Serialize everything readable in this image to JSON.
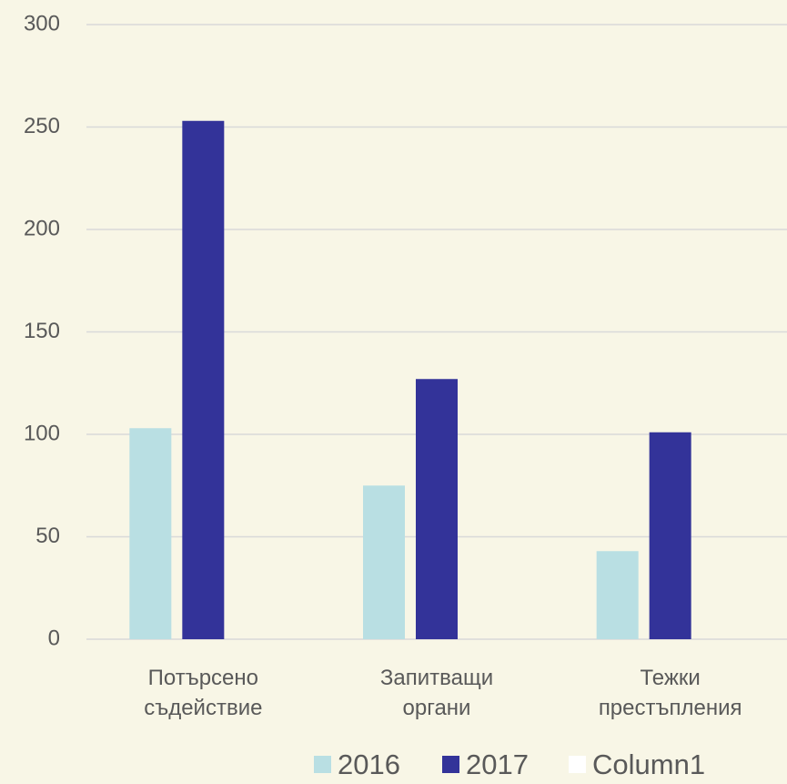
{
  "chart_data": {
    "type": "bar",
    "categories": [
      "Потърсено съдействие",
      "Запитващи органи",
      "Тежки престъпления"
    ],
    "series": [
      {
        "name": "2016",
        "color": "#b9dfe3",
        "values": [
          103,
          75,
          43
        ]
      },
      {
        "name": "2017",
        "color": "#333399",
        "values": [
          253,
          127,
          101
        ]
      },
      {
        "name": "Column1",
        "color": "#ffffff",
        "values": [
          null,
          null,
          null
        ]
      }
    ],
    "ylim": [
      0,
      300
    ],
    "yticks": [
      0,
      50,
      100,
      150,
      200,
      250,
      300
    ],
    "grid": true,
    "legend": "bottom"
  }
}
